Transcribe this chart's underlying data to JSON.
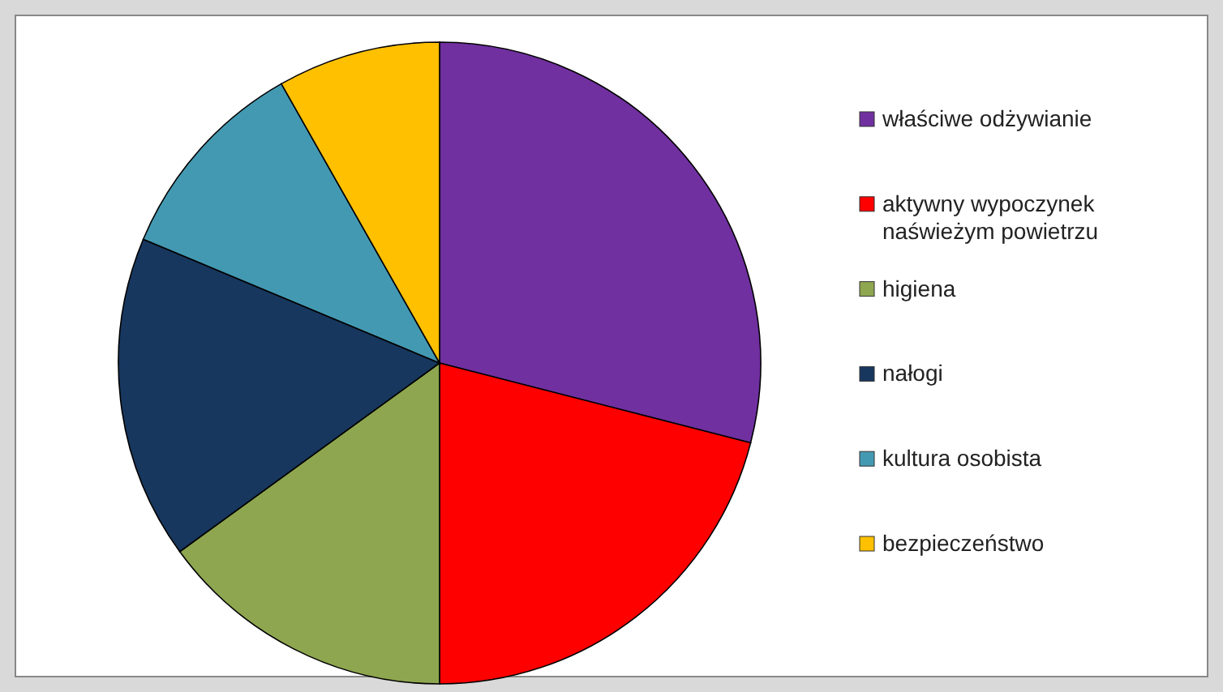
{
  "chart_data": {
    "type": "pie",
    "categories": [
      "właściwe odżywianie",
      "aktywny wypoczynek naświeżym powietrzu",
      "higiena",
      "nałogi",
      "kultura osobista",
      "bezpieczeństwo"
    ],
    "values": [
      29,
      21,
      15,
      16.3,
      10.5,
      8.2
    ],
    "colors": [
      "#7030a0",
      "#ff0000",
      "#8ea64f",
      "#17375e",
      "#4499b2",
      "#ffc000"
    ],
    "legend": "right"
  }
}
